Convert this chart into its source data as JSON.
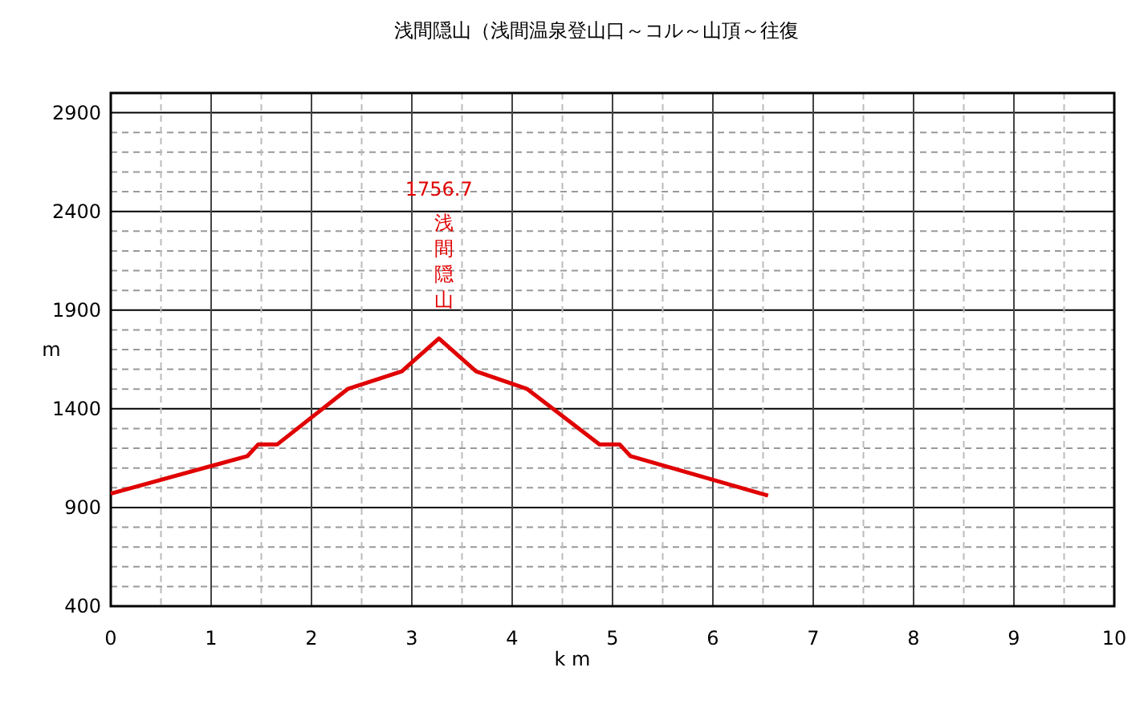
{
  "chart_data": {
    "type": "line",
    "title": "浅間隠山（浅間温泉登山口～コル～山頂～往復",
    "xlabel": "k m",
    "ylabel": "m",
    "x": [
      0,
      1,
      1.36,
      1.47,
      1.66,
      2.36,
      2.9,
      3.27,
      3.64,
      4.15,
      4.87,
      5.07,
      5.18,
      6.55
    ],
    "series": [
      {
        "color": "#e00000",
        "values": [
          970,
          1110,
          1160,
          1220,
          1220,
          1500,
          1590,
          1756.7,
          1590,
          1500,
          1220,
          1220,
          1160,
          960
        ]
      }
    ],
    "xlim": [
      0,
      10
    ],
    "xticks": [
      0,
      {
        "value": 0.5,
        "label": null
      },
      1,
      {
        "value": 1.5,
        "label": null
      },
      2,
      {
        "value": 2.5,
        "label": null
      },
      3,
      {
        "value": 3.5,
        "label": null
      },
      4,
      {
        "value": 4.5,
        "label": null
      },
      5,
      {
        "value": 5.5,
        "label": null
      },
      6,
      {
        "value": 6.5,
        "label": null
      },
      7,
      {
        "value": 7.5,
        "label": null
      },
      8,
      {
        "value": 8.5,
        "label": null
      },
      9,
      {
        "value": 9.5,
        "label": null
      },
      10
    ],
    "ylim": [
      400,
      3000
    ],
    "yticks": [
      400,
      {
        "value": 500,
        "label": null
      },
      {
        "value": 600,
        "label": null
      },
      {
        "value": 700,
        "label": null
      },
      {
        "value": 800,
        "label": null
      },
      900,
      {
        "value": 1000,
        "label": null
      },
      {
        "value": 1100,
        "label": null
      },
      {
        "value": 1200,
        "label": null
      },
      {
        "value": 1300,
        "label": null
      },
      1400,
      {
        "value": 1500,
        "label": null
      },
      {
        "value": 1600,
        "label": null
      },
      {
        "value": 1700,
        "label": null
      },
      {
        "value": 1800,
        "label": null
      },
      1900,
      {
        "value": 2000,
        "label": null
      },
      {
        "value": 2100,
        "label": null
      },
      {
        "value": 2200,
        "label": null
      },
      {
        "value": 2300,
        "label": null
      },
      2400,
      {
        "value": 2500,
        "label": null
      },
      {
        "value": 2600,
        "label": null
      },
      {
        "value": 2700,
        "label": null
      },
      {
        "value": 2800,
        "label": null
      },
      2900,
      {
        "value": 3000,
        "label": null
      }
    ],
    "grid": true,
    "marker": "none",
    "line_style": "solid",
    "annotations": [
      "1756.7",
      "浅間隠山"
    ]
  }
}
